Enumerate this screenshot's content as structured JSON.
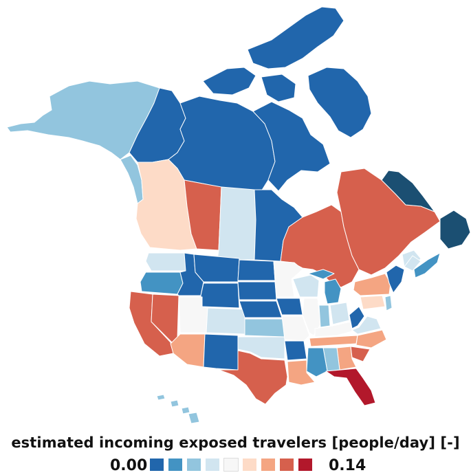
{
  "legend": {
    "title": "estimated incoming exposed travelers [people/day] [-]",
    "min_label": "0.00",
    "max_label": "0.14",
    "colors": [
      "#2166ac",
      "#4393c3",
      "#92c5de",
      "#d1e5f0",
      "#f7f7f7",
      "#fddbc7",
      "#f4a582",
      "#d6604d",
      "#b2182b"
    ]
  },
  "colors": {
    "deep_blue": "#1b4f72",
    "blue": "#2166ac",
    "mid_blue": "#4393c3",
    "light_blue": "#92c5de",
    "pale_blue": "#d1e5f0",
    "neutral": "#f7f7f7",
    "pale_red": "#fddbc7",
    "light_red": "#f4a582",
    "red": "#d6604d",
    "dark_red": "#b2182b",
    "blank": "#ffffff"
  },
  "regions": [
    {
      "name": "Alaska",
      "color": "light_blue"
    },
    {
      "name": "Yukon",
      "color": "blue"
    },
    {
      "name": "Northwest Territories",
      "color": "blue"
    },
    {
      "name": "Nunavut",
      "color": "blue"
    },
    {
      "name": "British Columbia",
      "color": "pale_red"
    },
    {
      "name": "Alberta",
      "color": "red"
    },
    {
      "name": "Saskatchewan",
      "color": "pale_blue"
    },
    {
      "name": "Manitoba",
      "color": "blue"
    },
    {
      "name": "Ontario",
      "color": "red"
    },
    {
      "name": "Quebec",
      "color": "red"
    },
    {
      "name": "Newfoundland and Labrador",
      "color": "deep_blue"
    },
    {
      "name": "New Brunswick",
      "color": "pale_blue"
    },
    {
      "name": "Nova Scotia",
      "color": "mid_blue"
    },
    {
      "name": "Washington",
      "color": "pale_blue"
    },
    {
      "name": "Oregon",
      "color": "mid_blue"
    },
    {
      "name": "California",
      "color": "red"
    },
    {
      "name": "Nevada",
      "color": "red"
    },
    {
      "name": "Idaho",
      "color": "blue"
    },
    {
      "name": "Montana",
      "color": "blue"
    },
    {
      "name": "Wyoming",
      "color": "blue"
    },
    {
      "name": "Utah",
      "color": "neutral"
    },
    {
      "name": "Colorado",
      "color": "pale_blue"
    },
    {
      "name": "Arizona",
      "color": "light_red"
    },
    {
      "name": "New Mexico",
      "color": "blue"
    },
    {
      "name": "North Dakota",
      "color": "blue"
    },
    {
      "name": "South Dakota",
      "color": "blue"
    },
    {
      "name": "Nebraska",
      "color": "blue"
    },
    {
      "name": "Kansas",
      "color": "light_blue"
    },
    {
      "name": "Oklahoma",
      "color": "pale_blue"
    },
    {
      "name": "Texas",
      "color": "red"
    },
    {
      "name": "Minnesota",
      "color": "neutral"
    },
    {
      "name": "Iowa",
      "color": "blue"
    },
    {
      "name": "Missouri",
      "color": "neutral"
    },
    {
      "name": "Arkansas",
      "color": "blue"
    },
    {
      "name": "Louisiana",
      "color": "light_red"
    },
    {
      "name": "Wisconsin",
      "color": "pale_blue"
    },
    {
      "name": "Illinois",
      "color": "neutral"
    },
    {
      "name": "Michigan",
      "color": "mid_blue"
    },
    {
      "name": "Indiana",
      "color": "light_blue"
    },
    {
      "name": "Ohio",
      "color": "pale_blue"
    },
    {
      "name": "Kentucky",
      "color": "neutral"
    },
    {
      "name": "Tennessee",
      "color": "light_red"
    },
    {
      "name": "Mississippi",
      "color": "mid_blue"
    },
    {
      "name": "Alabama",
      "color": "light_blue"
    },
    {
      "name": "Georgia",
      "color": "light_red"
    },
    {
      "name": "Florida",
      "color": "dark_red"
    },
    {
      "name": "South Carolina",
      "color": "red"
    },
    {
      "name": "North Carolina",
      "color": "light_red"
    },
    {
      "name": "Virginia",
      "color": "pale_blue"
    },
    {
      "name": "West Virginia",
      "color": "blue"
    },
    {
      "name": "Pennsylvania",
      "color": "pale_red"
    },
    {
      "name": "New York",
      "color": "light_red"
    },
    {
      "name": "New Jersey",
      "color": "light_blue"
    },
    {
      "name": "Maine",
      "color": "pale_blue"
    },
    {
      "name": "New England",
      "color": "blue"
    },
    {
      "name": "Hawaii",
      "color": "light_blue"
    }
  ]
}
